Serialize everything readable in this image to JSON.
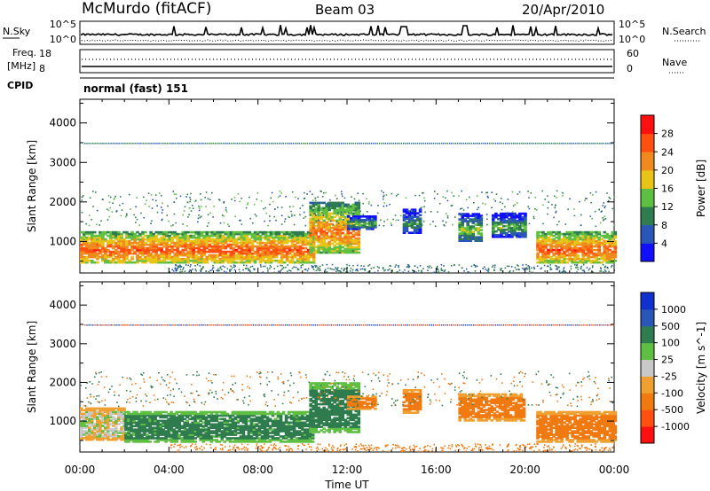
{
  "header": {
    "site": "McMurdo (fitACF)",
    "beam": "Beam 03",
    "date": "20/Apr/2010"
  },
  "top_panels": {
    "nsky_label": "N.Sky",
    "nsky_ticks": [
      "10^5",
      "10^0"
    ],
    "nsearch_label": "N.Search",
    "nsearch_ticks": [
      "10^5",
      "10^0"
    ],
    "freq_label": "Freq.",
    "freq_unit": "[MHz]",
    "freq_ticks": [
      "18",
      "8"
    ],
    "nave_label": "Nave",
    "nave_ticks": [
      "60",
      "0"
    ],
    "cpid_label": "CPID",
    "cpid_value": "normal (fast) 151"
  },
  "chart_data": [
    {
      "type": "heatmap",
      "name": "power-panel",
      "ylabel": "Slant Range [km]",
      "xlabel": "",
      "x_ticks": [
        "00:00",
        "04:00",
        "08:00",
        "12:00",
        "16:00",
        "20:00",
        "00:00"
      ],
      "y_ticks": [
        "1000",
        "2000",
        "3000",
        "4000"
      ],
      "ylim": [
        200,
        4600
      ],
      "xlim_hours": [
        0,
        24
      ],
      "colorbar": {
        "label": "Power [dB]",
        "ticks": [
          "4",
          "8",
          "12",
          "16",
          "20",
          "24",
          "28"
        ],
        "colors": [
          "#1010ff",
          "#2a56b8",
          "#2f7c4e",
          "#5fbf43",
          "#e8c418",
          "#f08a1e",
          "#ff5010",
          "#ff1010"
        ]
      },
      "echo_regions": [
        {
          "t0": 0.0,
          "t1": 10.5,
          "r0": 450,
          "r1": 1250,
          "level": 26
        },
        {
          "t0": 10.3,
          "t1": 12.5,
          "r0": 700,
          "r1": 2000,
          "level": 24
        },
        {
          "t0": 12.0,
          "t1": 13.2,
          "r0": 1300,
          "r1": 1650,
          "level": 14
        },
        {
          "t0": 14.5,
          "t1": 15.3,
          "r0": 1200,
          "r1": 1800,
          "level": 12
        },
        {
          "t0": 17.0,
          "t1": 18.0,
          "r0": 1000,
          "r1": 1700,
          "level": 16
        },
        {
          "t0": 18.5,
          "t1": 20.0,
          "r0": 1100,
          "r1": 1700,
          "level": 14
        },
        {
          "t0": 20.5,
          "t1": 24.0,
          "r0": 450,
          "r1": 1250,
          "level": 26
        }
      ]
    },
    {
      "type": "heatmap",
      "name": "velocity-panel",
      "ylabel": "Slant Range [km]",
      "xlabel": "Time UT",
      "x_ticks": [
        "00:00",
        "04:00",
        "08:00",
        "12:00",
        "16:00",
        "20:00",
        "00:00"
      ],
      "y_ticks": [
        "1000",
        "2000",
        "3000",
        "4000"
      ],
      "ylim": [
        200,
        4600
      ],
      "xlim_hours": [
        0,
        24
      ],
      "colorbar": {
        "label": "Velocity [m s^-1]",
        "ticks": [
          "1000",
          "500",
          "100",
          "25",
          "-25",
          "-100",
          "-500",
          "-1000"
        ],
        "colors": [
          "#1030d0",
          "#2a56b8",
          "#2f7c4e",
          "#5fbf43",
          "#c8c8c8",
          "#f0a030",
          "#f07a10",
          "#ff5010",
          "#ff1010"
        ]
      },
      "echo_regions": [
        {
          "t0": 0.0,
          "t1": 2.0,
          "r0": 500,
          "r1": 1350,
          "level": 0
        },
        {
          "t0": 2.0,
          "t1": 10.5,
          "r0": 450,
          "r1": 1250,
          "level": 150
        },
        {
          "t0": 10.3,
          "t1": 12.5,
          "r0": 700,
          "r1": 2000,
          "level": 200
        },
        {
          "t0": 12.0,
          "t1": 13.2,
          "r0": 1300,
          "r1": 1650,
          "level": -200
        },
        {
          "t0": 14.5,
          "t1": 15.3,
          "r0": 1200,
          "r1": 1800,
          "level": -200
        },
        {
          "t0": 17.0,
          "t1": 20.0,
          "r0": 1000,
          "r1": 1700,
          "level": -200
        },
        {
          "t0": 20.5,
          "t1": 24.0,
          "r0": 450,
          "r1": 1250,
          "level": -200
        }
      ]
    }
  ]
}
